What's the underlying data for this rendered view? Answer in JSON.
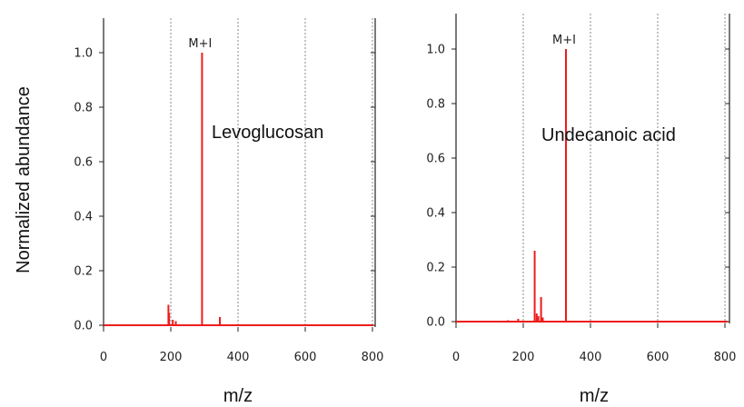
{
  "figure": {
    "ylabel": "Normalized abundance"
  },
  "chart_data": [
    {
      "type": "line",
      "title": "",
      "annotation": "Levoglucosan",
      "peak_label": "M+I",
      "xlabel": "m/z",
      "ylabel": "Normalized abundance",
      "xlim": [
        0,
        820
      ],
      "ylim": [
        0,
        1.1
      ],
      "xticks": [
        0,
        200,
        400,
        600,
        800
      ],
      "yticks": [
        0.0,
        0.2,
        0.4,
        0.6,
        0.8,
        1.0
      ],
      "xtick_labels": [
        "0",
        "200",
        "400",
        "600",
        "800"
      ],
      "ytick_labels": [
        "0.0",
        "0.2",
        "0.4",
        "0.6",
        "0.8",
        "1.0"
      ],
      "grid": "vertical dotted",
      "color": "#ee1c1c",
      "baseline": 0.0,
      "peaks": [
        {
          "x": 193,
          "y": 0.075
        },
        {
          "x": 195,
          "y": 0.045
        },
        {
          "x": 206,
          "y": 0.02
        },
        {
          "x": 215,
          "y": 0.015
        },
        {
          "x": 293,
          "y": 1.0
        },
        {
          "x": 346,
          "y": 0.03
        }
      ]
    },
    {
      "type": "line",
      "title": "",
      "annotation": "Undecanoic acid",
      "peak_label": "M+I",
      "xlabel": "m/z",
      "ylabel": "",
      "xlim": [
        0,
        820
      ],
      "ylim": [
        0,
        1.1
      ],
      "xticks": [
        0,
        200,
        400,
        600,
        800
      ],
      "yticks": [
        0.0,
        0.2,
        0.4,
        0.6,
        0.8,
        1.0
      ],
      "xtick_labels": [
        "0",
        "200",
        "400",
        "600",
        "800"
      ],
      "ytick_labels": [
        "0.0",
        "0.2",
        "0.4",
        "0.6",
        "0.8",
        "1.0"
      ],
      "grid": "vertical dotted",
      "color": "#ee1c1c",
      "baseline": 0.0,
      "peaks": [
        {
          "x": 155,
          "y": 0.005
        },
        {
          "x": 185,
          "y": 0.01
        },
        {
          "x": 234,
          "y": 0.26
        },
        {
          "x": 240,
          "y": 0.03
        },
        {
          "x": 245,
          "y": 0.02
        },
        {
          "x": 253,
          "y": 0.09
        },
        {
          "x": 258,
          "y": 0.015
        },
        {
          "x": 327,
          "y": 1.0
        }
      ]
    }
  ]
}
